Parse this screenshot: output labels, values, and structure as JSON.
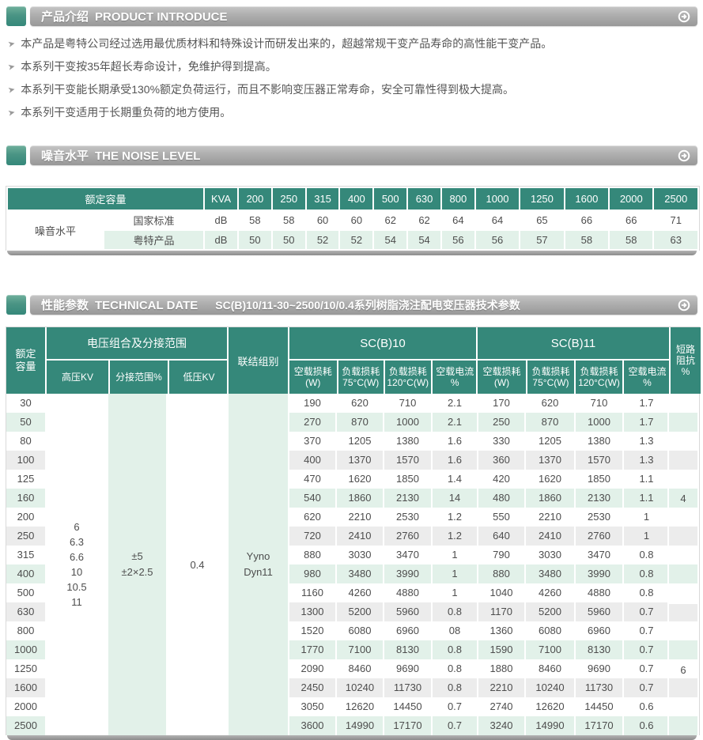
{
  "colors": {
    "accent_teal": "#35887a",
    "stripe_green": "#e2f1e9",
    "stripe_gray": "#ececec",
    "panel_green": "#e2f1e9",
    "text_dark": "#4d4d4d"
  },
  "sections": {
    "intro": {
      "title_cn": "产品介绍",
      "title_en": "PRODUCT INTRODUCE",
      "bullets": [
        "本产品是粤特公司经过选用最优质材料和特殊设计而研发出来的，超越常规干变产品寿命的高性能干变产品。",
        "本系列干变按35年超长寿命设计，免维护得到提高。",
        "本系列干变能长期承受130%额定负荷运行，而且不影响变压器正常寿命，安全可靠性得到极大提高。",
        "本系列干变适用于长期重负荷的地方使用。"
      ]
    },
    "noise": {
      "title_cn": "噪音水平",
      "title_en": "THE NOISE LEVEL",
      "table": {
        "rated_label": "额定容量",
        "unit_header": "KVA",
        "capacities": [
          "200",
          "250",
          "315",
          "400",
          "500",
          "630",
          "800",
          "1000",
          "1250",
          "1600",
          "2000",
          "2500"
        ],
        "group_label": "噪音水平",
        "rows": [
          {
            "label": "国家标准",
            "unit": "dB",
            "values": [
              "58",
              "58",
              "60",
              "60",
              "62",
              "62",
              "64",
              "64",
              "65",
              "66",
              "66",
              "71"
            ]
          },
          {
            "label": "粤特产品",
            "unit": "dB",
            "values": [
              "50",
              "50",
              "52",
              "52",
              "54",
              "54",
              "56",
              "56",
              "57",
              "58",
              "58",
              "63"
            ]
          }
        ]
      }
    },
    "tech": {
      "title_cn": "性能参数",
      "title_en": "TECHNICAL DATE",
      "subtitle": "SC(B)10/11-30~2500/10/0.4系列树脂浇注配电变压器技术参数",
      "table": {
        "rated_lines": [
          "额定",
          "容量"
        ],
        "voltage_group": "电压组合及分接范围",
        "hv_header": "高压KV",
        "tap_header": "分接范围%",
        "lv_header": "低压KV",
        "vector_header": "联结组别",
        "scb10_header": "SC(B)10",
        "scb11_header": "SC(B)11",
        "sub_headers": [
          {
            "l1": "空载损耗",
            "l2": "(W)"
          },
          {
            "l1": "负载损耗",
            "l2": "75°C(W)"
          },
          {
            "l1": "负载损耗",
            "l2": "120°C(W)"
          },
          {
            "l1": "空载电流",
            "l2": "%"
          }
        ],
        "impedance_lines": [
          "短路",
          "阻抗",
          "%"
        ],
        "hv_values": [
          "6",
          "6.3",
          "6.6",
          "10",
          "10.5",
          "11"
        ],
        "tap_values": [
          "±5",
          "±2×2.5"
        ],
        "lv_value": "0.4",
        "vector_values": [
          "Yyno",
          "Dyn11"
        ],
        "rows": [
          {
            "c": "30",
            "v": [
              "190",
              "620",
              "710",
              "2.1",
              "170",
              "620",
              "710",
              "1.7"
            ]
          },
          {
            "c": "50",
            "v": [
              "270",
              "870",
              "1000",
              "2.1",
              "250",
              "870",
              "1000",
              "1.7"
            ]
          },
          {
            "c": "80",
            "v": [
              "370",
              "1205",
              "1380",
              "1.6",
              "330",
              "1205",
              "1380",
              "1.3"
            ]
          },
          {
            "c": "100",
            "v": [
              "400",
              "1370",
              "1570",
              "1.6",
              "360",
              "1370",
              "1570",
              "1.3"
            ]
          },
          {
            "c": "125",
            "v": [
              "470",
              "1620",
              "1850",
              "1.4",
              "420",
              "1620",
              "1850",
              "1.1"
            ]
          },
          {
            "c": "160",
            "v": [
              "540",
              "1860",
              "2130",
              "14",
              "480",
              "1860",
              "2130",
              "1.1"
            ]
          },
          {
            "c": "200",
            "v": [
              "620",
              "2210",
              "2530",
              "1.2",
              "550",
              "2210",
              "2530",
              "1"
            ]
          },
          {
            "c": "250",
            "v": [
              "720",
              "2410",
              "2760",
              "1.2",
              "640",
              "2410",
              "2760",
              "1"
            ]
          },
          {
            "c": "315",
            "v": [
              "880",
              "3030",
              "3470",
              "1",
              "790",
              "3030",
              "3470",
              "0.8"
            ]
          },
          {
            "c": "400",
            "v": [
              "980",
              "3480",
              "3990",
              "1",
              "880",
              "3480",
              "3990",
              "0.8"
            ]
          },
          {
            "c": "500",
            "v": [
              "1160",
              "4260",
              "4880",
              "1",
              "1040",
              "4260",
              "4880",
              "0.8"
            ]
          },
          {
            "c": "630",
            "v": [
              "1300",
              "5200",
              "5960",
              "0.8",
              "1170",
              "5200",
              "5960",
              "0.7"
            ]
          },
          {
            "c": "800",
            "v": [
              "1520",
              "6080",
              "6960",
              "08",
              "1360",
              "6080",
              "6960",
              "0.7"
            ]
          },
          {
            "c": "1000",
            "v": [
              "1770",
              "7100",
              "8130",
              "0.8",
              "1590",
              "7100",
              "8130",
              "0.7"
            ]
          },
          {
            "c": "1250",
            "v": [
              "2090",
              "8460",
              "9690",
              "0.8",
              "1880",
              "8460",
              "9690",
              "0.7"
            ]
          },
          {
            "c": "1600",
            "v": [
              "2450",
              "10240",
              "11730",
              "0.8",
              "2210",
              "10240",
              "11730",
              "0.7"
            ]
          },
          {
            "c": "2000",
            "v": [
              "3050",
              "12620",
              "14450",
              "0.7",
              "2740",
              "12620",
              "14450",
              "0.6"
            ]
          },
          {
            "c": "2500",
            "v": [
              "3600",
              "14990",
              "17170",
              "0.7",
              "3240",
              "14990",
              "17170",
              "0.6"
            ]
          }
        ],
        "impedance": [
          {
            "value": "4"
          },
          {
            "value": "6"
          }
        ]
      }
    }
  }
}
